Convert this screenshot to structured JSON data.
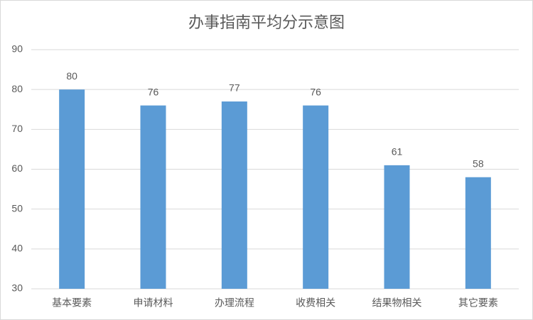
{
  "chart_data": {
    "type": "bar",
    "title": "办事指南平均分示意图",
    "categories": [
      "基本要素",
      "申请材料",
      "办理流程",
      "收费相关",
      "结果物相关",
      "其它要素"
    ],
    "values": [
      80,
      76,
      77,
      76,
      61,
      58
    ],
    "color": "#5b9bd5",
    "ylim": [
      30,
      90
    ],
    "yticks": [
      30,
      40,
      50,
      60,
      70,
      80,
      90
    ],
    "grid": true,
    "data_labels": true
  }
}
